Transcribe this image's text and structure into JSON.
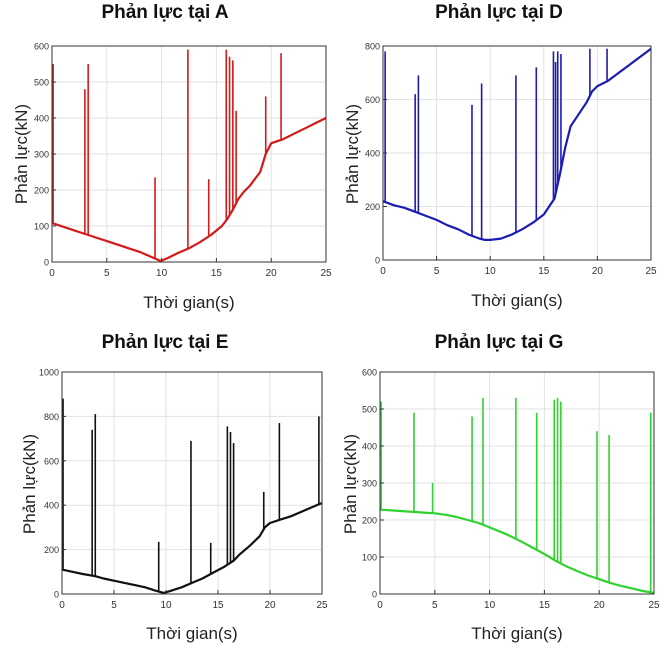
{
  "chart_data": [
    {
      "type": "line",
      "title": "Phản lực tại A",
      "xlabel": "Thời gian(s)",
      "ylabel": "Phản lực(kN)",
      "xlim": [
        0,
        25
      ],
      "ylim": [
        0,
        600
      ],
      "xticks": [
        "0",
        "5",
        "10",
        "15",
        "20",
        "25"
      ],
      "yticks": [
        "0",
        "100",
        "200",
        "300",
        "400",
        "500",
        "600"
      ],
      "grid": true,
      "color": "#d21a1a",
      "series": [
        {
          "x": [
            0,
            1,
            2,
            3.3,
            4,
            5,
            6,
            7,
            8,
            9,
            9.9,
            10.5,
            11.5,
            12.5,
            13.5,
            14.5,
            15.5,
            16,
            16.5,
            17,
            17.5,
            18,
            19,
            19.5,
            20,
            21,
            22,
            23,
            24,
            25
          ],
          "y": [
            108,
            98,
            88,
            75,
            68,
            58,
            48,
            38,
            28,
            15,
            3,
            10,
            25,
            38,
            55,
            75,
            100,
            120,
            145,
            175,
            195,
            210,
            250,
            300,
            330,
            340,
            355,
            370,
            385,
            400
          ]
        }
      ],
      "spikes": [
        {
          "x": 0.1,
          "y": 550
        },
        {
          "x": 3.0,
          "y": 480
        },
        {
          "x": 3.3,
          "y": 550
        },
        {
          "x": 9.4,
          "y": 235
        },
        {
          "x": 12.4,
          "y": 590
        },
        {
          "x": 14.3,
          "y": 230
        },
        {
          "x": 15.9,
          "y": 590
        },
        {
          "x": 16.2,
          "y": 570
        },
        {
          "x": 16.5,
          "y": 560
        },
        {
          "x": 16.8,
          "y": 420
        },
        {
          "x": 19.5,
          "y": 460
        },
        {
          "x": 20.9,
          "y": 580
        }
      ]
    },
    {
      "type": "line",
      "title": "Phản lực tại D",
      "xlabel": "Thời gian(s)",
      "ylabel": "Phản lực(kN)",
      "xlim": [
        0,
        25
      ],
      "ylim": [
        0,
        800
      ],
      "xticks": [
        "0",
        "5",
        "10",
        "15",
        "20",
        "25"
      ],
      "yticks": [
        "0",
        "200",
        "400",
        "600",
        "800"
      ],
      "grid": true,
      "color": "#1c1cb4",
      "series": [
        {
          "x": [
            0,
            1,
            2,
            3,
            4,
            5,
            6,
            7,
            8,
            9,
            9.5,
            10,
            11,
            12,
            13,
            14,
            15,
            16,
            16.5,
            17,
            17.5,
            18,
            19,
            19.5,
            20,
            21,
            22,
            23,
            24,
            25
          ],
          "y": [
            220,
            205,
            195,
            180,
            165,
            150,
            130,
            115,
            95,
            80,
            75,
            75,
            80,
            95,
            115,
            140,
            170,
            230,
            320,
            420,
            500,
            530,
            590,
            630,
            650,
            670,
            700,
            730,
            760,
            790
          ]
        }
      ],
      "spikes": [
        {
          "x": 0.2,
          "y": 780
        },
        {
          "x": 3.0,
          "y": 620
        },
        {
          "x": 3.3,
          "y": 690
        },
        {
          "x": 8.3,
          "y": 580
        },
        {
          "x": 9.2,
          "y": 660
        },
        {
          "x": 12.4,
          "y": 690
        },
        {
          "x": 14.3,
          "y": 720
        },
        {
          "x": 15.9,
          "y": 780
        },
        {
          "x": 16.1,
          "y": 740
        },
        {
          "x": 16.3,
          "y": 780
        },
        {
          "x": 16.6,
          "y": 770
        },
        {
          "x": 19.3,
          "y": 790
        },
        {
          "x": 20.9,
          "y": 790
        }
      ]
    },
    {
      "type": "line",
      "title": "Phản lực tại E",
      "xlabel": "Thời gian(s)",
      "ylabel": "Phản lực(kN)",
      "xlim": [
        0,
        25
      ],
      "ylim": [
        0,
        1000
      ],
      "xticks": [
        "0",
        "5",
        "10",
        "15",
        "20",
        "25"
      ],
      "yticks": [
        "0",
        "200",
        "400",
        "600",
        "800",
        "1000"
      ],
      "grid": true,
      "color": "#111111",
      "series": [
        {
          "x": [
            0,
            1,
            2,
            3.2,
            4,
            5,
            6,
            7,
            8,
            9,
            9.8,
            10.5,
            11.5,
            12.5,
            13.5,
            14.5,
            15.5,
            16.5,
            17,
            17.5,
            18,
            19,
            19.5,
            20,
            21,
            22,
            23,
            24,
            25
          ],
          "y": [
            110,
            100,
            90,
            80,
            70,
            60,
            50,
            40,
            30,
            15,
            5,
            15,
            30,
            50,
            70,
            95,
            120,
            150,
            175,
            195,
            215,
            260,
            300,
            320,
            335,
            350,
            370,
            390,
            410
          ]
        }
      ],
      "spikes": [
        {
          "x": 0.1,
          "y": 880
        },
        {
          "x": 2.9,
          "y": 740
        },
        {
          "x": 3.2,
          "y": 810
        },
        {
          "x": 9.3,
          "y": 235
        },
        {
          "x": 12.4,
          "y": 690
        },
        {
          "x": 14.3,
          "y": 230
        },
        {
          "x": 15.9,
          "y": 755
        },
        {
          "x": 16.2,
          "y": 730
        },
        {
          "x": 16.5,
          "y": 680
        },
        {
          "x": 19.4,
          "y": 460
        },
        {
          "x": 20.9,
          "y": 770
        },
        {
          "x": 24.7,
          "y": 800
        }
      ]
    },
    {
      "type": "line",
      "title": "Phản lực tại G",
      "xlabel": "Thời gian(s)",
      "ylabel": "Phản lực(kN)",
      "xlim": [
        0,
        25
      ],
      "ylim": [
        0,
        600
      ],
      "xticks": [
        "0",
        "5",
        "10",
        "15",
        "20",
        "25"
      ],
      "yticks": [
        "0",
        "100",
        "200",
        "300",
        "400",
        "500",
        "600"
      ],
      "grid": true,
      "color": "#2fd22f",
      "series": [
        {
          "x": [
            0,
            1,
            2,
            3,
            4,
            5,
            6,
            7,
            8,
            9,
            10,
            11,
            12,
            13,
            14,
            15,
            16,
            17,
            18,
            19,
            20,
            21,
            22,
            23,
            24,
            25
          ],
          "y": [
            228,
            226,
            224,
            222,
            220,
            218,
            214,
            208,
            200,
            192,
            180,
            168,
            155,
            140,
            124,
            108,
            90,
            75,
            62,
            50,
            40,
            30,
            22,
            15,
            8,
            3
          ]
        }
      ],
      "spikes": [
        {
          "x": 0.1,
          "y": 520
        },
        {
          "x": 3.1,
          "y": 490
        },
        {
          "x": 4.8,
          "y": 300
        },
        {
          "x": 8.4,
          "y": 480
        },
        {
          "x": 9.4,
          "y": 530
        },
        {
          "x": 12.4,
          "y": 530
        },
        {
          "x": 14.3,
          "y": 490
        },
        {
          "x": 15.9,
          "y": 525
        },
        {
          "x": 16.2,
          "y": 530
        },
        {
          "x": 16.5,
          "y": 520
        },
        {
          "x": 19.8,
          "y": 440
        },
        {
          "x": 20.9,
          "y": 430
        },
        {
          "x": 24.7,
          "y": 490
        }
      ]
    }
  ]
}
